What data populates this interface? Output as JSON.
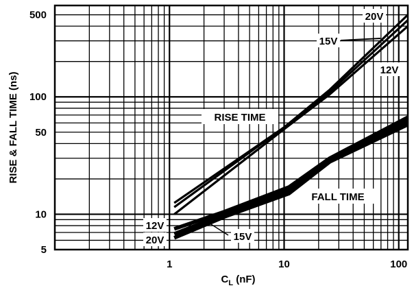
{
  "chart_data": {
    "type": "line",
    "title": "",
    "xlabel": "C",
    "xlabel_sub": "L",
    "xlabel_unit": " (nF)",
    "ylabel": "RISE & FALL TIME (ns)",
    "x_scale": "log",
    "y_scale": "log",
    "xlim": [
      0.1,
      120
    ],
    "ylim": [
      5,
      600
    ],
    "grid": true,
    "x_ticks": [
      {
        "value": 1,
        "label": "1"
      },
      {
        "value": 10,
        "label": "10"
      },
      {
        "value": 100,
        "label": "100"
      }
    ],
    "y_ticks": [
      {
        "value": 5,
        "label": "5"
      },
      {
        "value": 10,
        "label": "10"
      },
      {
        "value": 50,
        "label": "50"
      },
      {
        "value": 100,
        "label": "100"
      },
      {
        "value": 500,
        "label": "500"
      }
    ],
    "series": [
      {
        "group": "RISE TIME",
        "label": "20V",
        "x": [
          1.1,
          10,
          25,
          120
        ],
        "y": [
          12.5,
          55,
          115,
          500
        ]
      },
      {
        "group": "RISE TIME",
        "label": "15V",
        "x": [
          1.1,
          10,
          25,
          120
        ],
        "y": [
          11.5,
          55,
          110,
          450
        ]
      },
      {
        "group": "RISE TIME",
        "label": "12V",
        "x": [
          1.1,
          10,
          25,
          120
        ],
        "y": [
          10,
          53,
          105,
          400
        ]
      },
      {
        "group": "FALL TIME",
        "label": "12V",
        "x": [
          1.1,
          3,
          11,
          25,
          120
        ],
        "y": [
          7.5,
          10.5,
          17,
          30,
          67
        ]
      },
      {
        "group": "FALL TIME",
        "label": "15V",
        "x": [
          1.1,
          3,
          11,
          25,
          120
        ],
        "y": [
          6.8,
          10,
          16,
          29,
          62
        ]
      },
      {
        "group": "FALL TIME",
        "label": "20V",
        "x": [
          1.1,
          3,
          11,
          25,
          120
        ],
        "y": [
          6.3,
          9.5,
          15,
          28,
          58
        ]
      }
    ],
    "annotations": {
      "rise_time": "RISE TIME",
      "fall_time": "FALL TIME",
      "rise_20v": "20V",
      "rise_15v": "15V",
      "rise_12v": "12V",
      "fall_12v": "12V",
      "fall_15v": "15V",
      "fall_20v": "20V"
    }
  }
}
